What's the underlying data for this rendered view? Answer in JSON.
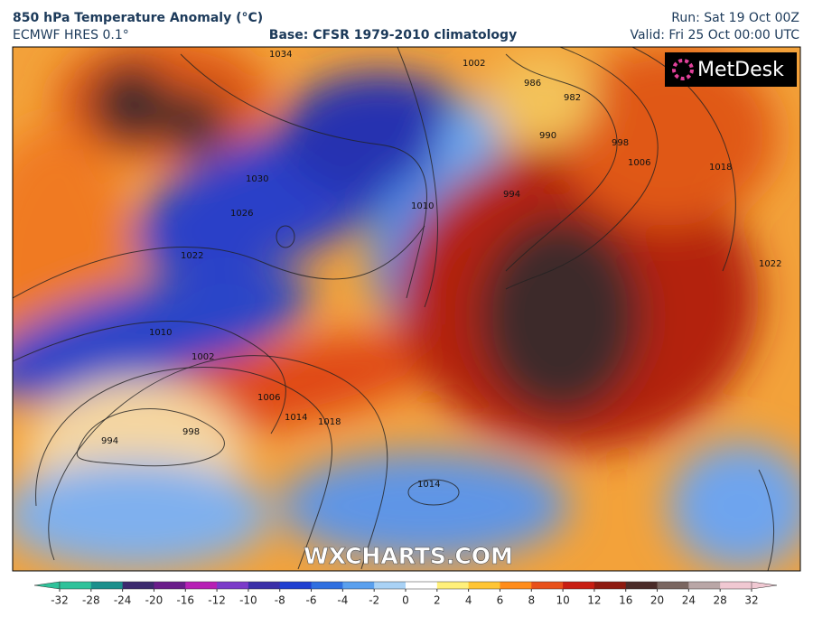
{
  "header": {
    "title": "850 hPa Temperature Anomaly (°C)",
    "model": "ECMWF HRES 0.1°",
    "base": "Base: CFSR 1979-2010 climatology",
    "run": "Run: Sat 19 Oct 00Z",
    "valid": "Valid: Fri 25 Oct 00:00 UTC"
  },
  "logo": "MetDesk",
  "watermark": "WXCHARTS.COM",
  "isobar_labels": [
    1022,
    1010,
    1002,
    1006,
    1014,
    1018,
    998,
    994,
    1026,
    1030,
    1034,
    986,
    982,
    990,
    998,
    1006,
    1018,
    994,
    1010,
    1002,
    1014,
    1022
  ],
  "colorbar": {
    "ticks": [
      -32,
      -28,
      -24,
      -20,
      -16,
      -12,
      -10,
      -8,
      -6,
      -4,
      -2,
      0,
      2,
      4,
      6,
      8,
      10,
      12,
      16,
      20,
      24,
      28,
      32
    ],
    "colors": [
      "#2fc29a",
      "#1b8f8c",
      "#3c2a6e",
      "#6a1c8a",
      "#b71fb5",
      "#7b3ac9",
      "#3a2fa8",
      "#1f3fd0",
      "#2f6fe0",
      "#5aa0ee",
      "#a9d2f5",
      "#ffffff",
      "#fff07a",
      "#ffc533",
      "#ff8c1a",
      "#e8501a",
      "#c81e12",
      "#8e1a10",
      "#4a2b28",
      "#7a6660",
      "#b9a6a6",
      "#f0c8d2"
    ]
  }
}
